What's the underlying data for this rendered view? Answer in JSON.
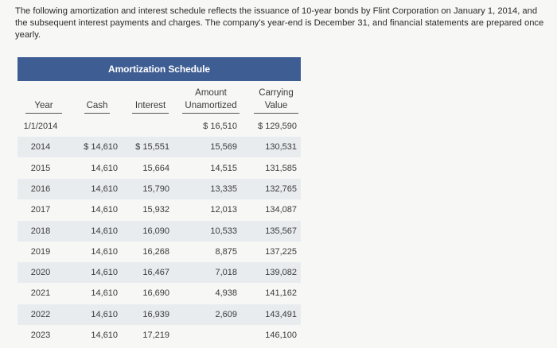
{
  "intro": "The following amortization and interest schedule reflects the issuance of 10-year bonds by Flint Corporation on January 1, 2014, and the subsequent interest payments and charges. The company's year-end is December 31, and financial statements are prepared once yearly.",
  "table": {
    "title": "Amortization Schedule",
    "headers": {
      "year": "Year",
      "cash": "Cash",
      "interest": "Interest",
      "amount_line1": "Amount",
      "amount_line2": "Unamortized",
      "carrying_line1": "Carrying",
      "carrying_line2": "Value"
    },
    "rows": [
      {
        "year": "1/1/2014",
        "cash": "",
        "interest": "",
        "amount": "$ 16,510",
        "carrying": "$ 129,590"
      },
      {
        "year": "2014",
        "cash": "$ 14,610",
        "interest": "$ 15,551",
        "amount": "15,569",
        "carrying": "130,531"
      },
      {
        "year": "2015",
        "cash": "14,610",
        "interest": "15,664",
        "amount": "14,515",
        "carrying": "131,585"
      },
      {
        "year": "2016",
        "cash": "14,610",
        "interest": "15,790",
        "amount": "13,335",
        "carrying": "132,765"
      },
      {
        "year": "2017",
        "cash": "14,610",
        "interest": "15,932",
        "amount": "12,013",
        "carrying": "134,087"
      },
      {
        "year": "2018",
        "cash": "14,610",
        "interest": "16,090",
        "amount": "10,533",
        "carrying": "135,567"
      },
      {
        "year": "2019",
        "cash": "14,610",
        "interest": "16,268",
        "amount": "8,875",
        "carrying": "137,225"
      },
      {
        "year": "2020",
        "cash": "14,610",
        "interest": "16,467",
        "amount": "7,018",
        "carrying": "139,082"
      },
      {
        "year": "2021",
        "cash": "14,610",
        "interest": "16,690",
        "amount": "4,938",
        "carrying": "141,162"
      },
      {
        "year": "2022",
        "cash": "14,610",
        "interest": "16,939",
        "amount": "2,609",
        "carrying": "143,491"
      },
      {
        "year": "2023",
        "cash": "14,610",
        "interest": "17,219",
        "amount": "",
        "carrying": "146,100"
      }
    ]
  }
}
